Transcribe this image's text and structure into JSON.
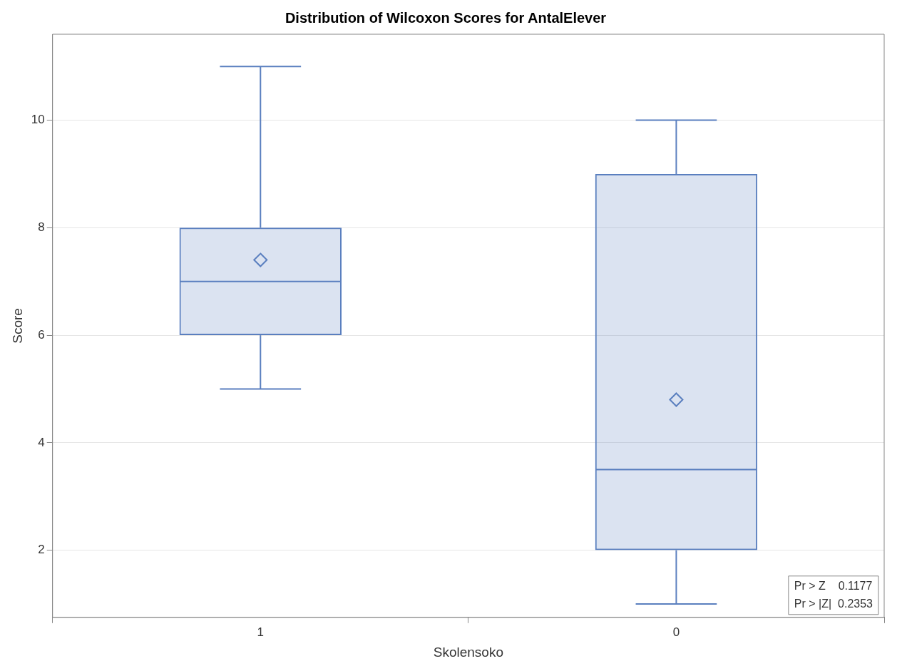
{
  "chart_data": {
    "type": "box",
    "title": "Distribution of Wilcoxon Scores for AntalElever",
    "xlabel": "Skolensoko",
    "ylabel": "Score",
    "categories": [
      "1",
      "0"
    ],
    "series": [
      {
        "color": "#5a7fbf",
        "boxes": [
          {
            "low": 5,
            "q1": 6,
            "median": 7,
            "q3": 8,
            "high": 11,
            "mean": 7.4
          },
          {
            "low": 1,
            "q1": 2,
            "median": 3.5,
            "q3": 9,
            "high": 10,
            "mean": 4.8
          }
        ]
      }
    ],
    "ylim": [
      0.75,
      11.6
    ],
    "yticks": [
      2,
      4,
      6,
      8,
      10
    ],
    "grid": "y",
    "legend": false,
    "marker": "diamond",
    "annotations": [
      "Pr > Z    0.1177",
      "Pr > |Z|  0.2353"
    ]
  }
}
